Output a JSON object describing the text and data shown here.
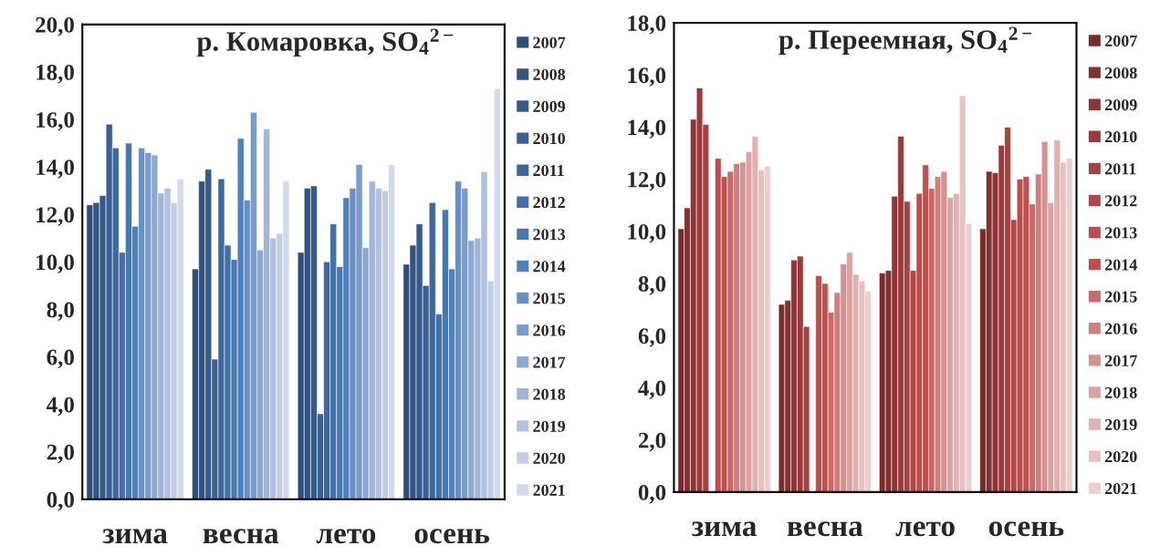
{
  "chart_data": [
    {
      "type": "bar",
      "title": "р. Комаровка, SO$_{4}$$^{2−}$",
      "categories": [
        "зима",
        "весна",
        "лето",
        "осень"
      ],
      "ylim": [
        0,
        20
      ],
      "yticks": [
        {
          "value": 0,
          "label": "0,0"
        },
        {
          "value": 2,
          "label": "2,0"
        },
        {
          "value": 4,
          "label": "4,0"
        },
        {
          "value": 6,
          "label": "6,0"
        },
        {
          "value": 8,
          "label": "8,0"
        },
        {
          "value": 10,
          "label": "10,0"
        },
        {
          "value": 12,
          "label": "12,0"
        },
        {
          "value": 14,
          "label": "14,0"
        },
        {
          "value": 16,
          "label": "16,0"
        },
        {
          "value": 18,
          "label": "18,0"
        },
        {
          "value": 20,
          "label": "20,0"
        }
      ],
      "grid": false,
      "legend": "right",
      "series": [
        {
          "name": "2007",
          "color": "#2f4e79",
          "values": [
            12.4,
            9.7,
            10.4,
            9.9
          ]
        },
        {
          "name": "2008",
          "color": "#325481",
          "values": [
            12.5,
            13.4,
            13.1,
            10.7
          ]
        },
        {
          "name": "2009",
          "color": "#365a89",
          "values": [
            12.8,
            13.9,
            13.2,
            11.6
          ]
        },
        {
          "name": "2010",
          "color": "#3a6192",
          "values": [
            15.8,
            5.9,
            3.6,
            9.0
          ]
        },
        {
          "name": "2011",
          "color": "#3e689b",
          "values": [
            14.8,
            13.5,
            10.0,
            12.5
          ]
        },
        {
          "name": "2012",
          "color": "#4370a6",
          "values": [
            10.4,
            10.7,
            11.6,
            7.8
          ]
        },
        {
          "name": "2013",
          "color": "#4878b0",
          "values": [
            15.0,
            10.1,
            9.8,
            12.2
          ]
        },
        {
          "name": "2014",
          "color": "#4f81bd",
          "values": [
            11.5,
            15.2,
            12.7,
            9.7
          ]
        },
        {
          "name": "2015",
          "color": "#6890c4",
          "values": [
            14.8,
            12.6,
            13.1,
            13.4
          ]
        },
        {
          "name": "2016",
          "color": "#7a9cca",
          "values": [
            14.6,
            16.3,
            14.1,
            13.1
          ]
        },
        {
          "name": "2017",
          "color": "#8ea9d1",
          "values": [
            14.5,
            10.5,
            10.6,
            10.9
          ]
        },
        {
          "name": "2018",
          "color": "#a1b5d8",
          "values": [
            12.9,
            15.6,
            13.4,
            11.0
          ]
        },
        {
          "name": "2019",
          "color": "#b2c1de",
          "values": [
            13.1,
            11.0,
            13.1,
            13.8
          ]
        },
        {
          "name": "2020",
          "color": "#c3cee5",
          "values": [
            12.5,
            11.2,
            13.0,
            9.2
          ]
        },
        {
          "name": "2021",
          "color": "#d2dbec",
          "values": [
            13.5,
            13.4,
            14.1,
            17.3
          ]
        }
      ]
    },
    {
      "type": "bar",
      "title": "р. Переемная, SO$_{4}$$^{2−}$",
      "categories": [
        "зима",
        "весна",
        "лето",
        "осень"
      ],
      "ylim": [
        0,
        18
      ],
      "yticks": [
        {
          "value": 0,
          "label": "0,0"
        },
        {
          "value": 2,
          "label": "2,0"
        },
        {
          "value": 4,
          "label": "4,0"
        },
        {
          "value": 6,
          "label": "6,0"
        },
        {
          "value": 8,
          "label": "8,0"
        },
        {
          "value": 10,
          "label": "10,0"
        },
        {
          "value": 12,
          "label": "12,0"
        },
        {
          "value": 14,
          "label": "14,0"
        },
        {
          "value": 16,
          "label": "16,0"
        },
        {
          "value": 18,
          "label": "18,0"
        }
      ],
      "grid": false,
      "legend": "right",
      "series": [
        {
          "name": "2007",
          "color": "#772b2b",
          "values": [
            10.1,
            7.2,
            8.4,
            10.1
          ]
        },
        {
          "name": "2008",
          "color": "#833030",
          "values": [
            10.9,
            7.35,
            8.5,
            12.3
          ]
        },
        {
          "name": "2009",
          "color": "#8e3535",
          "values": [
            14.3,
            8.9,
            11.35,
            12.25
          ]
        },
        {
          "name": "2010",
          "color": "#9a3b3b",
          "values": [
            15.5,
            9.05,
            13.65,
            13.3
          ]
        },
        {
          "name": "2011",
          "color": "#a54242",
          "values": [
            14.1,
            6.35,
            11.15,
            14.0
          ]
        },
        {
          "name": "2012",
          "color": "#b04848",
          "values": [
            null,
            null,
            8.5,
            10.45
          ]
        },
        {
          "name": "2013",
          "color": "#bb4e4c",
          "values": [
            12.8,
            8.3,
            11.45,
            12.0
          ]
        },
        {
          "name": "2014",
          "color": "#c0504d",
          "values": [
            12.1,
            8.0,
            12.55,
            12.1
          ]
        },
        {
          "name": "2015",
          "color": "#c86a68",
          "values": [
            12.3,
            6.9,
            11.65,
            11.05
          ]
        },
        {
          "name": "2016",
          "color": "#cf7f7d",
          "values": [
            12.6,
            7.65,
            12.1,
            12.2
          ]
        },
        {
          "name": "2017",
          "color": "#d59291",
          "values": [
            12.65,
            8.75,
            12.3,
            13.45
          ]
        },
        {
          "name": "2018",
          "color": "#dba4a3",
          "values": [
            13.05,
            9.2,
            11.3,
            11.1
          ]
        },
        {
          "name": "2019",
          "color": "#e0b3b2",
          "values": [
            13.65,
            8.35,
            11.45,
            13.5
          ]
        },
        {
          "name": "2020",
          "color": "#e6c2c1",
          "values": [
            12.35,
            8.1,
            15.2,
            12.65
          ]
        },
        {
          "name": "2021",
          "color": "#eccfce",
          "values": [
            12.5,
            7.7,
            10.3,
            12.8
          ]
        }
      ]
    }
  ]
}
